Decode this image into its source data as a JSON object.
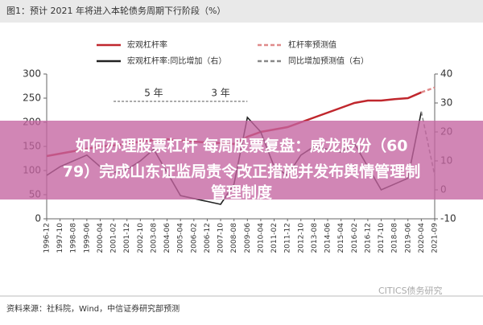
{
  "chart_data": {
    "type": "line",
    "title": "图1：预计 2021 年将进入本轮债务周期下行阶段（%）",
    "categories": [
      "1996-12",
      "1997-10",
      "1998-08",
      "1999-06",
      "2000-04",
      "2001-02",
      "2001-12",
      "2002-10",
      "2003-08",
      "2004-06",
      "2005-04",
      "2006-02",
      "2006-12",
      "2007-10",
      "2008-08",
      "2009-06",
      "2010-04",
      "2011-02",
      "2011-12",
      "2012-10",
      "2013-08",
      "2014-06",
      "2015-04",
      "2016-02",
      "2016-12",
      "2017-10",
      "2018-08",
      "2019-06",
      "2020-04",
      "2021-09"
    ],
    "series": [
      {
        "name": "宏观杠杆率",
        "color": "#c0272d",
        "dash": false,
        "axis": "y",
        "values": [
          130,
          135,
          140,
          145,
          150,
          152,
          155,
          160,
          163,
          165,
          162,
          160,
          158,
          157,
          155,
          170,
          180,
          185,
          190,
          200,
          210,
          220,
          230,
          240,
          245,
          245,
          248,
          250,
          262,
          null
        ]
      },
      {
        "name": "杠杆率预测值",
        "color": "#e08a8a",
        "dash": true,
        "axis": "y",
        "values": [
          null,
          null,
          null,
          null,
          null,
          null,
          null,
          null,
          null,
          null,
          null,
          null,
          null,
          null,
          null,
          null,
          null,
          null,
          null,
          null,
          null,
          null,
          null,
          null,
          null,
          null,
          null,
          null,
          262,
          272
        ]
      },
      {
        "name": "宏观杠杆率:同比增加（右）",
        "color": "#222222",
        "dash": false,
        "axis": "y2",
        "values": [
          5,
          8,
          10,
          12,
          8,
          6,
          7,
          10,
          14,
          6,
          -2,
          -3,
          -4,
          -5,
          2,
          25,
          20,
          8,
          5,
          12,
          15,
          14,
          13,
          16,
          8,
          0,
          2,
          4,
          27,
          null
        ]
      },
      {
        "name": "同比增加预测值（右）",
        "color": "#888888",
        "dash": true,
        "axis": "y2",
        "values": [
          null,
          null,
          null,
          null,
          null,
          null,
          null,
          null,
          null,
          null,
          null,
          null,
          null,
          null,
          null,
          null,
          null,
          null,
          null,
          null,
          null,
          null,
          null,
          null,
          null,
          null,
          null,
          null,
          27,
          5
        ]
      }
    ],
    "ylim": [
      0,
      300
    ],
    "yticks": [
      0,
      50,
      100,
      150,
      200,
      250,
      300
    ],
    "y2lim": [
      -10,
      40
    ],
    "y2ticks": [
      -10,
      0,
      10,
      20,
      30,
      40
    ],
    "annotations": [
      "5 年",
      "3 年"
    ],
    "source": "资料来源：社科院，Wind，中信证券研究部预测",
    "watermark": "CITICS债务研究"
  },
  "overlay": {
    "lines": [
      "如何办理股票杠杆 每周股票复盘：威龙股份（60",
      "79）完成山东证监局责令改正措施并发布舆情管理制",
      "管理制度"
    ]
  }
}
